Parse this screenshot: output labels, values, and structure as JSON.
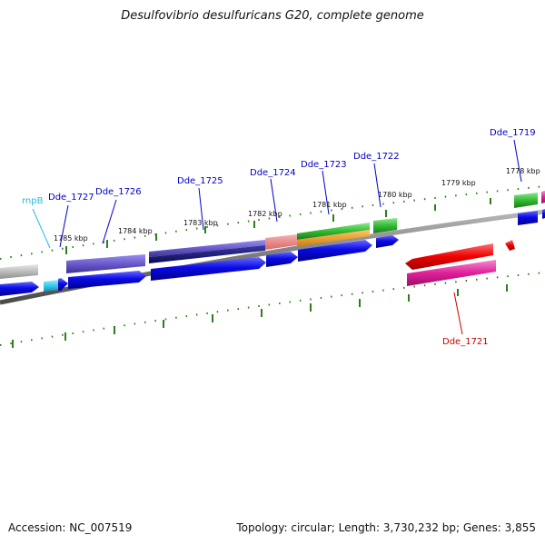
{
  "title": "Desulfovibrio desulfuricans G20, complete genome",
  "footer": {
    "accession": "Accession: NC_007519",
    "topology": "Topology: circular; Length: 3,730,232 bp; Genes: 3,855"
  },
  "ticks": [
    "1785 kbp",
    "1784 kbp",
    "1783 kbp",
    "1782 kbp",
    "1781 kbp",
    "1780 kbp",
    "1779 kbp",
    "1778 kbp"
  ],
  "gene_labels": [
    {
      "text": "rnpB",
      "color": "#22bbdd"
    },
    {
      "text": "Dde_1727",
      "color": "#0000cc"
    },
    {
      "text": "Dde_1726",
      "color": "#0000cc"
    },
    {
      "text": "Dde_1725",
      "color": "#0000cc"
    },
    {
      "text": "Dde_1724",
      "color": "#0000cc"
    },
    {
      "text": "Dde_1723",
      "color": "#0000cc"
    },
    {
      "text": "Dde_1722",
      "color": "#0000cc"
    },
    {
      "text": "Dde_1719",
      "color": "#0000cc"
    },
    {
      "text": "Dde_1721",
      "color": "#cc0000"
    }
  ],
  "colors": {
    "backbone": "#808080",
    "tick": "#2e7d1e",
    "blue_cds": "#0a0ae6",
    "rna": "#33ccee",
    "purple": "#6a5acd",
    "navy": "#101070",
    "salmon": "#e88080",
    "green": "#33bb33",
    "orange": "#f39c12",
    "red": "#ee0000",
    "magenta": "#e0209a",
    "grey": "#b0b0b0"
  }
}
